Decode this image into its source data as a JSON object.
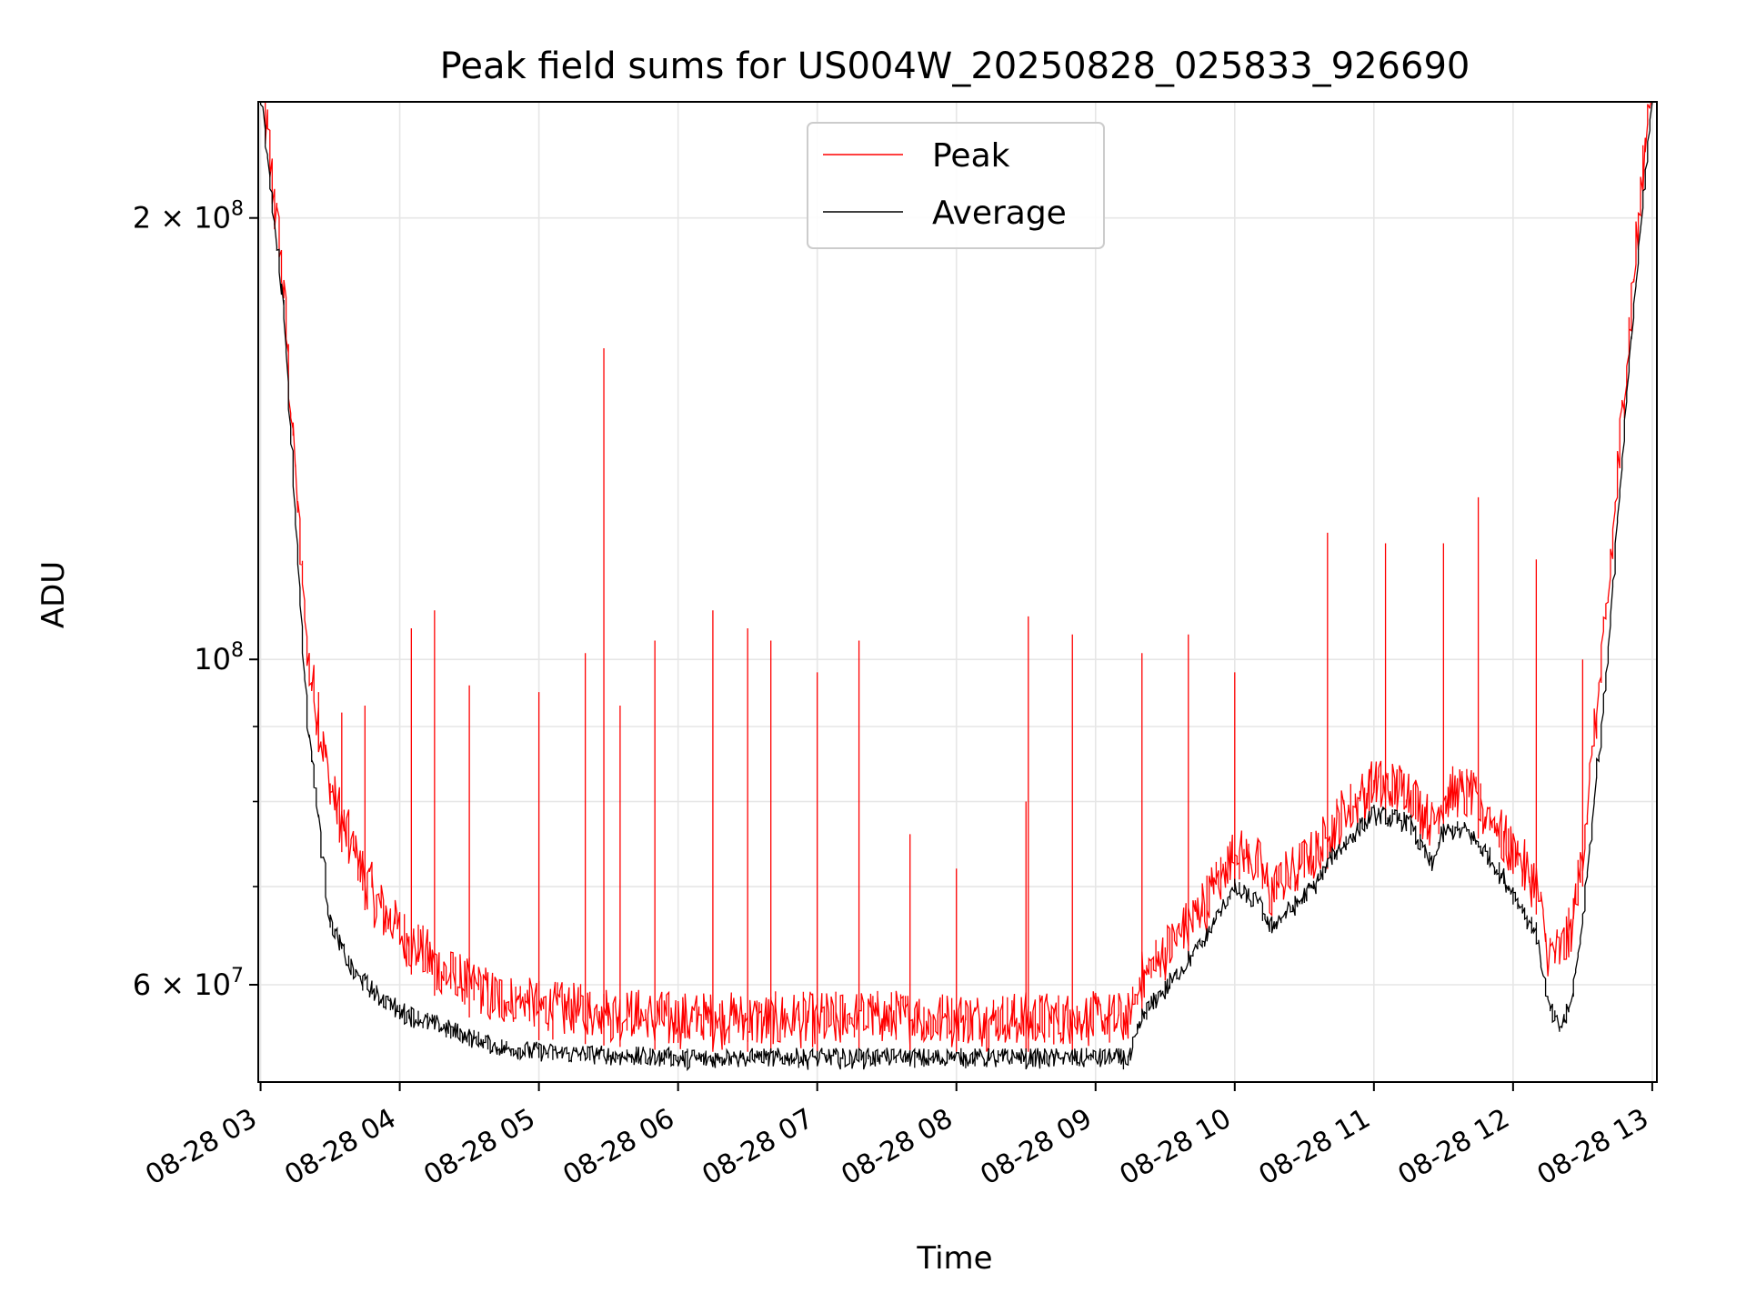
{
  "chart_data": {
    "type": "line",
    "title": "Peak field sums for US004W_20250828_025833_926690",
    "xlabel": "Time",
    "ylabel": "ADU",
    "yscale": "log",
    "grid": true,
    "legend_position": "top-center",
    "xlim": [
      "08-28 02:59",
      "08-28 13:02"
    ],
    "ylim": [
      51500000,
      240000000
    ],
    "x_ticks": [
      {
        "value": "08-28 03:00",
        "label": "08-28 03"
      },
      {
        "value": "08-28 04:00",
        "label": "08-28 04"
      },
      {
        "value": "08-28 05:00",
        "label": "08-28 05"
      },
      {
        "value": "08-28 06:00",
        "label": "08-28 06"
      },
      {
        "value": "08-28 07:00",
        "label": "08-28 07"
      },
      {
        "value": "08-28 08:00",
        "label": "08-28 08"
      },
      {
        "value": "08-28 09:00",
        "label": "08-28 09"
      },
      {
        "value": "08-28 10:00",
        "label": "08-28 10"
      },
      {
        "value": "08-28 11:00",
        "label": "08-28 11"
      },
      {
        "value": "08-28 12:00",
        "label": "08-28 12"
      },
      {
        "value": "08-28 13:00",
        "label": "08-28 13"
      }
    ],
    "y_major_ticks": [
      {
        "value": 60000000,
        "base": "6 × 10",
        "exp": "7"
      },
      {
        "value": 100000000,
        "base": "10",
        "exp": "8"
      },
      {
        "value": 200000000,
        "base": "2 × 10",
        "exp": "8"
      }
    ],
    "y_minor_ticks": [
      70000000,
      80000000,
      90000000
    ],
    "series": [
      {
        "name": "Peak",
        "color": "#ff0000",
        "points": [
          [
            "08-28 03:00",
            240000000
          ],
          [
            "08-28 03:10",
            170000000
          ],
          [
            "08-28 03:20",
            96000000
          ],
          [
            "08-28 03:30",
            78000000
          ],
          [
            "08-28 03:40",
            70000000
          ],
          [
            "08-28 03:50",
            65000000
          ],
          [
            "08-28 04:00",
            62000000
          ],
          [
            "08-28 04:20",
            58000000
          ],
          [
            "08-28 04:40",
            56000000
          ],
          [
            "08-28 05:00",
            55000000
          ],
          [
            "08-28 05:30",
            54500000
          ],
          [
            "08-28 06:00",
            54000000
          ],
          [
            "08-28 06:30",
            54000000
          ],
          [
            "08-28 07:00",
            54000000
          ],
          [
            "08-28 07:30",
            54200000
          ],
          [
            "08-28 08:00",
            54000000
          ],
          [
            "08-28 08:30",
            54000000
          ],
          [
            "08-28 09:00",
            54000000
          ],
          [
            "08-28 09:15",
            54000000
          ],
          [
            "08-28 09:20",
            57500000
          ],
          [
            "08-28 09:30",
            60000000
          ],
          [
            "08-28 09:45",
            64000000
          ],
          [
            "08-28 10:00",
            70000000
          ],
          [
            "08-28 10:10",
            69000000
          ],
          [
            "08-28 10:15",
            66000000
          ],
          [
            "08-28 10:25",
            68000000
          ],
          [
            "08-28 10:35",
            70000000
          ],
          [
            "08-28 10:45",
            74000000
          ],
          [
            "08-28 11:00",
            78000000
          ],
          [
            "08-28 11:15",
            77500000
          ],
          [
            "08-28 11:25",
            73000000
          ],
          [
            "08-28 11:30",
            77000000
          ],
          [
            "08-28 11:40",
            77000000
          ],
          [
            "08-28 11:50",
            74000000
          ],
          [
            "08-28 12:00",
            70000000
          ],
          [
            "08-28 12:10",
            67000000
          ],
          [
            "08-28 12:15",
            60000000
          ],
          [
            "08-28 12:20",
            60000000
          ],
          [
            "08-28 12:25",
            62000000
          ],
          [
            "08-28 12:30",
            70000000
          ],
          [
            "08-28 12:40",
            100000000
          ],
          [
            "08-28 12:50",
            160000000
          ],
          [
            "08-28 13:00",
            240000000
          ]
        ],
        "spikes": [
          [
            "08-28 03:25",
            95000000
          ],
          [
            "08-28 03:35",
            92000000
          ],
          [
            "08-28 03:45",
            93000000
          ],
          [
            "08-28 04:05",
            105000000
          ],
          [
            "08-28 04:15",
            108000000
          ],
          [
            "08-28 04:30",
            96000000
          ],
          [
            "08-28 05:00",
            95000000
          ],
          [
            "08-28 05:20",
            101000000
          ],
          [
            "08-28 05:28",
            163000000
          ],
          [
            "08-28 05:35",
            93000000
          ],
          [
            "08-28 05:50",
            103000000
          ],
          [
            "08-28 06:15",
            108000000
          ],
          [
            "08-28 06:30",
            105000000
          ],
          [
            "08-28 06:40",
            103000000
          ],
          [
            "08-28 07:00",
            98000000
          ],
          [
            "08-28 07:18",
            103000000
          ],
          [
            "08-28 07:40",
            76000000
          ],
          [
            "08-28 08:00",
            72000000
          ],
          [
            "08-28 08:30",
            80000000
          ],
          [
            "08-28 08:31",
            107000000
          ],
          [
            "08-28 08:50",
            104000000
          ],
          [
            "08-28 09:20",
            101000000
          ],
          [
            "08-28 09:40",
            104000000
          ],
          [
            "08-28 10:00",
            98000000
          ],
          [
            "08-28 10:40",
            122000000
          ],
          [
            "08-28 11:05",
            120000000
          ],
          [
            "08-28 11:30",
            120000000
          ],
          [
            "08-28 11:45",
            129000000
          ],
          [
            "08-28 12:10",
            117000000
          ],
          [
            "08-28 12:30",
            100000000
          ]
        ]
      },
      {
        "name": "Average",
        "color": "#000000",
        "points": [
          [
            "08-28 03:00",
            240000000
          ],
          [
            "08-28 03:10",
            170000000
          ],
          [
            "08-28 03:20",
            90000000
          ],
          [
            "08-28 03:30",
            65000000
          ],
          [
            "08-28 03:40",
            60000000
          ],
          [
            "08-28 03:50",
            58000000
          ],
          [
            "08-28 04:00",
            56500000
          ],
          [
            "08-28 04:20",
            55000000
          ],
          [
            "08-28 04:40",
            53500000
          ],
          [
            "08-28 05:00",
            53000000
          ],
          [
            "08-28 05:30",
            52700000
          ],
          [
            "08-28 06:00",
            52500000
          ],
          [
            "08-28 06:30",
            52500000
          ],
          [
            "08-28 07:00",
            52500000
          ],
          [
            "08-28 07:30",
            52500000
          ],
          [
            "08-28 08:00",
            52500000
          ],
          [
            "08-28 08:30",
            52500000
          ],
          [
            "08-28 09:00",
            52500000
          ],
          [
            "08-28 09:15",
            52500000
          ],
          [
            "08-28 09:20",
            56000000
          ],
          [
            "08-28 09:30",
            58500000
          ],
          [
            "08-28 09:45",
            62500000
          ],
          [
            "08-28 10:00",
            68500000
          ],
          [
            "08-28 10:10",
            67000000
          ],
          [
            "08-28 10:15",
            64500000
          ],
          [
            "08-28 10:25",
            66500000
          ],
          [
            "08-28 10:35",
            69000000
          ],
          [
            "08-28 10:45",
            73000000
          ],
          [
            "08-28 11:00",
            77000000
          ],
          [
            "08-28 11:15",
            76000000
          ],
          [
            "08-28 11:25",
            71000000
          ],
          [
            "08-28 11:30",
            75000000
          ],
          [
            "08-28 11:40",
            75000000
          ],
          [
            "08-28 11:50",
            72000000
          ],
          [
            "08-28 12:00",
            68000000
          ],
          [
            "08-28 12:10",
            64000000
          ],
          [
            "08-28 12:15",
            57000000
          ],
          [
            "08-28 12:20",
            55000000
          ],
          [
            "08-28 12:25",
            57000000
          ],
          [
            "08-28 12:30",
            65000000
          ],
          [
            "08-28 12:40",
            95000000
          ],
          [
            "08-28 12:50",
            155000000
          ],
          [
            "08-28 13:00",
            240000000
          ]
        ]
      }
    ]
  }
}
